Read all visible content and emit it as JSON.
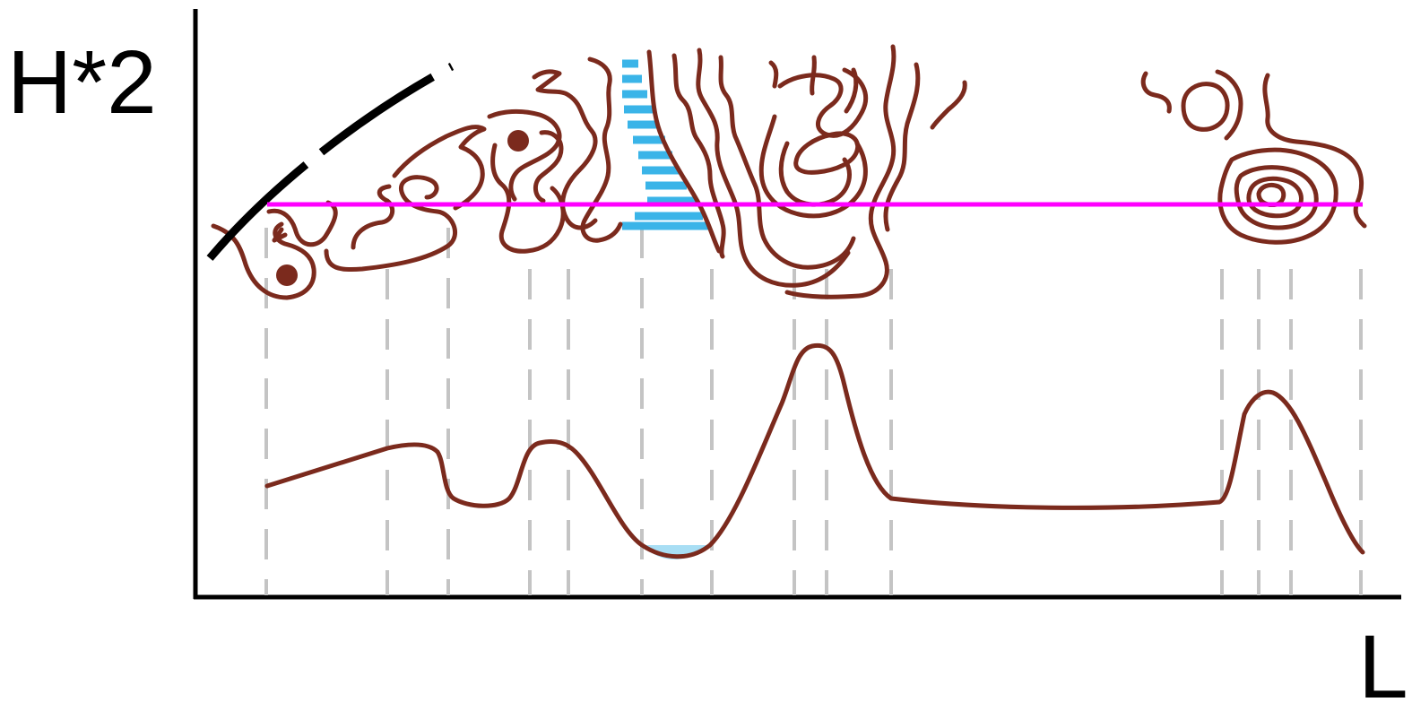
{
  "y_axis_label": "H*2",
  "x_axis_label": "L",
  "colors": {
    "contour": "#7b2a1d",
    "cut_line": "#ff00ff",
    "water": "#3ab4e8",
    "water_light": "#a8def4",
    "ridge": "#000000",
    "drop_line": "#c4c4c4"
  }
}
